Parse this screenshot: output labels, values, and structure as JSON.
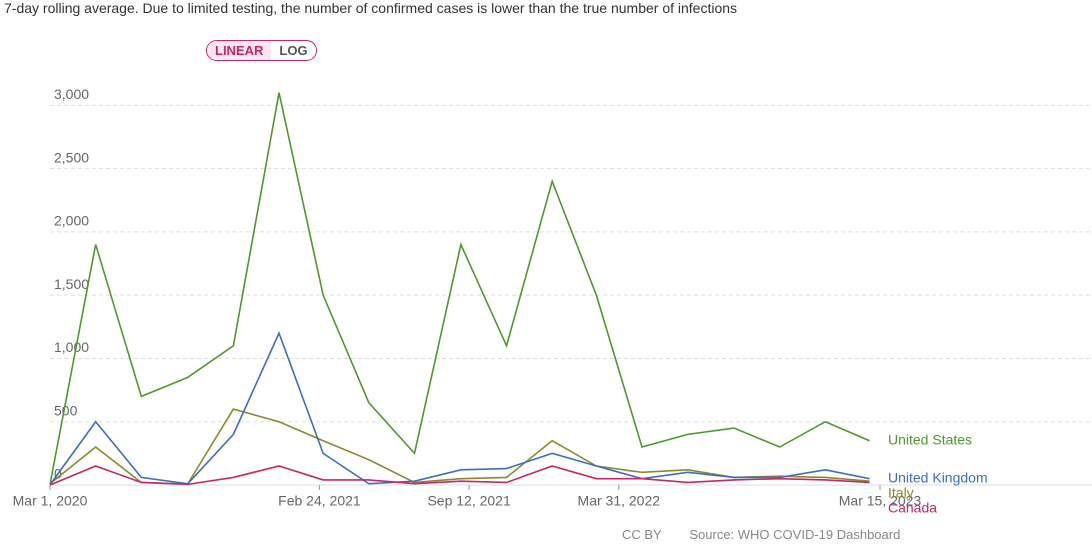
{
  "chart_data": {
    "type": "line",
    "subtitle": "7-day rolling average. Due to limited testing, the number of confirmed cases is lower than the true number of infections",
    "scale_buttons": [
      "LINEAR",
      "LOG"
    ],
    "log_scale": false,
    "grid": true,
    "x": [
      "2020-03-01",
      "2020-05-01",
      "2020-07-01",
      "2020-09-01",
      "2020-11-01",
      "2021-01-01",
      "2021-03-01",
      "2021-05-01",
      "2021-07-01",
      "2021-09-01",
      "2021-11-01",
      "2022-01-01",
      "2022-03-01",
      "2022-05-01",
      "2022-07-01",
      "2022-09-01",
      "2022-11-01",
      "2023-01-01",
      "2023-03-01"
    ],
    "xlim": [
      "2020-03-01",
      "2023-03-15"
    ],
    "xticks": [
      {
        "value": "2020-03-01",
        "label": "Mar 1, 2020"
      },
      {
        "value": "2021-02-24",
        "label": "Feb 24, 2021"
      },
      {
        "value": "2021-09-12",
        "label": "Sep 12, 2021"
      },
      {
        "value": "2022-03-31",
        "label": "Mar 31, 2022"
      },
      {
        "value": "2023-03-15",
        "label": "Mar 15, 2023"
      }
    ],
    "ylim": [
      0,
      3200
    ],
    "yticks": [
      0,
      500,
      {
        "value": 1000,
        "label": "1,000"
      },
      {
        "value": 1500,
        "label": "1,500"
      },
      {
        "value": 2000,
        "label": "2,000"
      },
      {
        "value": 2500,
        "label": "2,500"
      },
      {
        "value": 3000,
        "label": "3,000"
      }
    ],
    "series": [
      {
        "name": "United States",
        "color": "#4c9a2a",
        "values": [
          5,
          1900,
          700,
          850,
          1100,
          3100,
          1500,
          650,
          250,
          1900,
          1100,
          2400,
          1500,
          300,
          400,
          450,
          300,
          500,
          350
        ]
      },
      {
        "name": "Italy",
        "color": "#8a8a2a",
        "values": [
          10,
          300,
          20,
          8,
          600,
          500,
          350,
          200,
          20,
          50,
          60,
          350,
          150,
          100,
          120,
          60,
          70,
          60,
          30
        ]
      },
      {
        "name": "United Kingdom",
        "color": "#3a6fc4",
        "values": [
          2,
          500,
          60,
          10,
          400,
          1200,
          250,
          10,
          30,
          120,
          130,
          250,
          150,
          50,
          100,
          60,
          60,
          120,
          50
        ]
      },
      {
        "name": "Canada",
        "color": "#c9256a",
        "values": [
          0,
          150,
          20,
          5,
          60,
          150,
          40,
          40,
          10,
          30,
          20,
          150,
          50,
          50,
          20,
          40,
          50,
          40,
          20
        ]
      }
    ],
    "license": "CC BY",
    "source": "Source: WHO COVID-19 Dashboard"
  }
}
